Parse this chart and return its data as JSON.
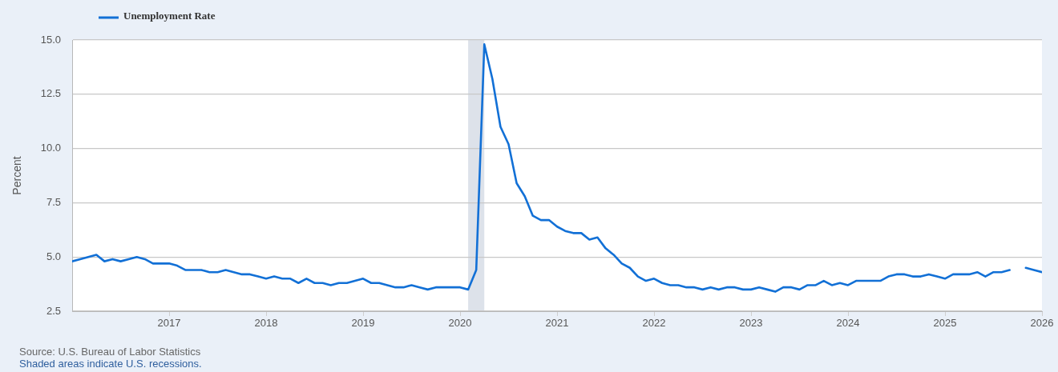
{
  "chart_data": {
    "type": "line",
    "ylabel": "Percent",
    "legend": "top left",
    "grid": "y",
    "xlim": [
      "2016-01",
      "2026-01"
    ],
    "xticks": [
      "2017",
      "2018",
      "2019",
      "2020",
      "2021",
      "2022",
      "2023",
      "2024",
      "2025",
      "2026"
    ],
    "ylim": [
      2.5,
      15
    ],
    "yticks": [
      2.5,
      {
        "value": 5,
        "label": "5.0"
      },
      7.5,
      {
        "value": 10,
        "label": "10.0"
      },
      12.5,
      {
        "value": 15,
        "label": "15.0"
      }
    ],
    "x": [
      "2016-01",
      "2016-02",
      "2016-03",
      "2016-04",
      "2016-05",
      "2016-06",
      "2016-07",
      "2016-08",
      "2016-09",
      "2016-10",
      "2016-11",
      "2016-12",
      "2017-01",
      "2017-02",
      "2017-03",
      "2017-04",
      "2017-05",
      "2017-06",
      "2017-07",
      "2017-08",
      "2017-09",
      "2017-10",
      "2017-11",
      "2017-12",
      "2018-01",
      "2018-02",
      "2018-03",
      "2018-04",
      "2018-05",
      "2018-06",
      "2018-07",
      "2018-08",
      "2018-09",
      "2018-10",
      "2018-11",
      "2018-12",
      "2019-01",
      "2019-02",
      "2019-03",
      "2019-04",
      "2019-05",
      "2019-06",
      "2019-07",
      "2019-08",
      "2019-09",
      "2019-10",
      "2019-11",
      "2019-12",
      "2020-01",
      "2020-02",
      "2020-03",
      "2020-04",
      "2020-05",
      "2020-06",
      "2020-07",
      "2020-08",
      "2020-09",
      "2020-10",
      "2020-11",
      "2020-12",
      "2021-01",
      "2021-02",
      "2021-03",
      "2021-04",
      "2021-05",
      "2021-06",
      "2021-07",
      "2021-08",
      "2021-09",
      "2021-10",
      "2021-11",
      "2021-12",
      "2022-01",
      "2022-02",
      "2022-03",
      "2022-04",
      "2022-05",
      "2022-06",
      "2022-07",
      "2022-08",
      "2022-09",
      "2022-10",
      "2022-11",
      "2022-12",
      "2023-01",
      "2023-02",
      "2023-03",
      "2023-04",
      "2023-05",
      "2023-06",
      "2023-07",
      "2023-08",
      "2023-09",
      "2023-10",
      "2023-11",
      "2023-12",
      "2024-01",
      "2024-02",
      "2024-03",
      "2024-04",
      "2024-05",
      "2024-06",
      "2024-07",
      "2024-08",
      "2024-09",
      "2024-10",
      "2024-11",
      "2024-12",
      "2025-01",
      "2025-02",
      "2025-03",
      "2025-04",
      "2025-05",
      "2025-06",
      "2025-07",
      "2025-08",
      "2025-09",
      "2025-10",
      "2025-11",
      "2025-12",
      "2026-01"
    ],
    "series": [
      {
        "name": "Unemployment Rate",
        "color": "#1270d6",
        "values": [
          4.8,
          4.9,
          5.0,
          5.1,
          4.8,
          4.9,
          4.8,
          4.9,
          5.0,
          4.9,
          4.7,
          4.7,
          4.7,
          4.6,
          4.4,
          4.4,
          4.4,
          4.3,
          4.3,
          4.4,
          4.3,
          4.2,
          4.2,
          4.1,
          4.0,
          4.1,
          4.0,
          4.0,
          3.8,
          4.0,
          3.8,
          3.8,
          3.7,
          3.8,
          3.8,
          3.9,
          4.0,
          3.8,
          3.8,
          3.7,
          3.6,
          3.6,
          3.7,
          3.6,
          3.5,
          3.6,
          3.6,
          3.6,
          3.6,
          3.5,
          4.4,
          14.8,
          13.2,
          11.0,
          10.2,
          8.4,
          7.8,
          6.9,
          6.7,
          6.7,
          6.4,
          6.2,
          6.1,
          6.1,
          5.8,
          5.9,
          5.4,
          5.1,
          4.7,
          4.5,
          4.1,
          3.9,
          4.0,
          3.8,
          3.7,
          3.7,
          3.6,
          3.6,
          3.5,
          3.6,
          3.5,
          3.6,
          3.6,
          3.5,
          3.5,
          3.6,
          3.5,
          3.4,
          3.6,
          3.6,
          3.5,
          3.7,
          3.7,
          3.9,
          3.7,
          3.8,
          3.7,
          3.9,
          3.9,
          3.9,
          3.9,
          4.1,
          4.2,
          4.2,
          4.1,
          4.1,
          4.2,
          4.1,
          4.0,
          4.2,
          4.2,
          4.2,
          4.3,
          4.1,
          4.3,
          4.3,
          4.4,
          null,
          4.5,
          4.4,
          4.3
        ]
      }
    ],
    "bands": [
      {
        "axis": "x",
        "from": "2020-02",
        "to": "2020-04",
        "color": "#dde2ea"
      }
    ],
    "annotations": [
      "Source: U.S. Bureau of Labor Statistics",
      "Shaded areas indicate U.S. recessions."
    ]
  }
}
